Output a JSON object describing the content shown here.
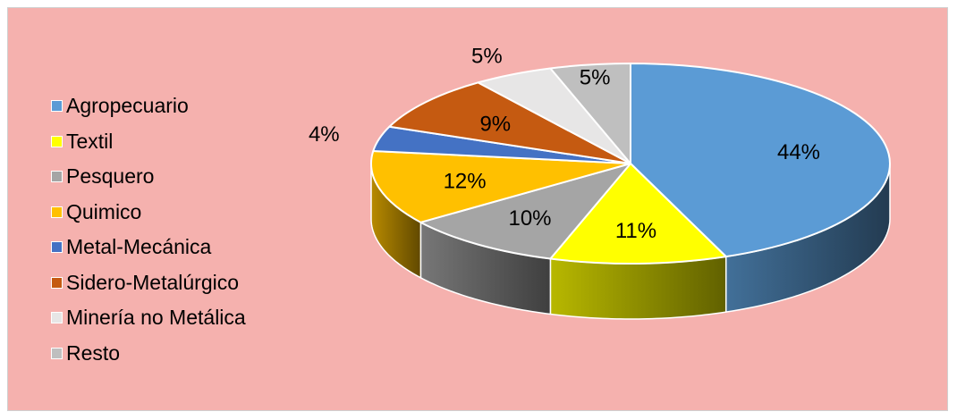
{
  "colors": {
    "background": "#f5b1ae",
    "slice_border": "#ffffff"
  },
  "chart_data": {
    "type": "pie",
    "style": "3d",
    "title": "",
    "legend_position": "left",
    "categories": [
      "Agropecuario",
      "Textil",
      "Pesquero",
      "Quimico",
      "Metal-Mecánica",
      "Sidero-Metalúrgico",
      "Minería no Metálica",
      "Resto"
    ],
    "values": [
      44,
      11,
      10,
      12,
      4,
      9,
      5,
      5
    ],
    "labels": [
      "44%",
      "11%",
      "10%",
      "12%",
      "4%",
      "9%",
      "5%",
      "5%"
    ],
    "colors": [
      "#5b9bd5",
      "#ffff00",
      "#a5a5a5",
      "#ffc000",
      "#4472c4",
      "#c55a11",
      "#e7e6e6",
      "#bfbfbf"
    ]
  }
}
